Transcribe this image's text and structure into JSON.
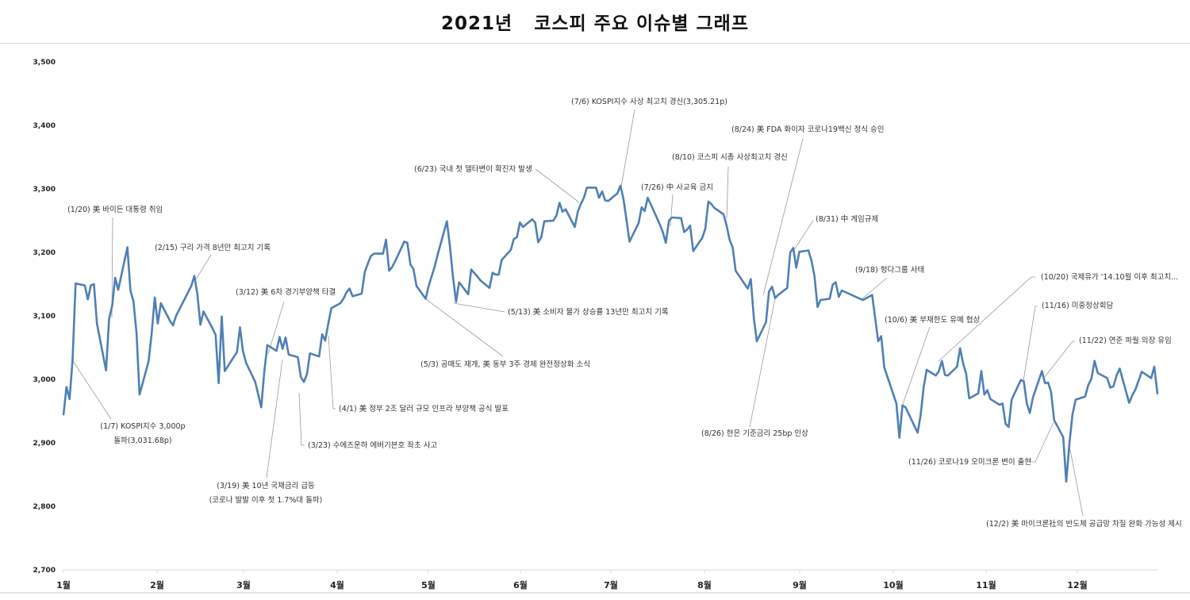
{
  "title": "2021년   코스피 주요 이슈별 그래프",
  "chart_data": {
    "type": "line",
    "title": "2021년   코스피 주요 이슈별 그래프",
    "xlabel": "",
    "ylabel": "",
    "ylim": [
      2700,
      3500
    ],
    "y_ticks": [
      "2,700",
      "2,800",
      "2,900",
      "3,000",
      "3,100",
      "3,200",
      "3,300",
      "3,400",
      "3,500"
    ],
    "y_tick_values": [
      2700,
      2800,
      2900,
      3000,
      3100,
      3200,
      3300,
      3400,
      3500
    ],
    "x_ticks": [
      "1월",
      "2월",
      "3월",
      "4월",
      "5월",
      "6월",
      "7월",
      "8월",
      "9월",
      "10월",
      "11월",
      "12월"
    ],
    "grid": false,
    "line_color": "#4f7fb5",
    "series": [
      {
        "x": [
          "2021-01-04",
          "2021-01-05",
          "2021-01-06",
          "2021-01-07",
          "2021-01-08",
          "2021-01-11",
          "2021-01-12",
          "2021-01-13",
          "2021-01-14",
          "2021-01-15",
          "2021-01-18",
          "2021-01-19",
          "2021-01-20",
          "2021-01-21",
          "2021-01-22",
          "2021-01-25",
          "2021-01-26",
          "2021-01-27",
          "2021-01-28",
          "2021-01-29",
          "2021-02-01",
          "2021-02-02",
          "2021-02-03",
          "2021-02-04",
          "2021-02-05",
          "2021-02-08",
          "2021-02-09",
          "2021-02-10",
          "2021-02-15",
          "2021-02-16",
          "2021-02-17",
          "2021-02-18",
          "2021-02-19",
          "2021-02-22",
          "2021-02-23",
          "2021-02-24",
          "2021-02-25",
          "2021-02-26",
          "2021-03-02",
          "2021-03-03",
          "2021-03-04",
          "2021-03-05",
          "2021-03-08",
          "2021-03-09",
          "2021-03-10",
          "2021-03-11",
          "2021-03-12",
          "2021-03-15",
          "2021-03-16",
          "2021-03-17",
          "2021-03-18",
          "2021-03-19",
          "2021-03-22",
          "2021-03-23",
          "2021-03-24",
          "2021-03-25",
          "2021-03-26",
          "2021-03-29",
          "2021-03-30",
          "2021-03-31",
          "2021-04-01",
          "2021-04-02",
          "2021-04-05",
          "2021-04-06",
          "2021-04-07",
          "2021-04-08",
          "2021-04-09",
          "2021-04-12",
          "2021-04-13",
          "2021-04-14",
          "2021-04-15",
          "2021-04-16",
          "2021-04-19",
          "2021-04-20",
          "2021-04-21",
          "2021-04-22",
          "2021-04-23",
          "2021-04-26",
          "2021-04-27",
          "2021-04-28",
          "2021-04-29",
          "2021-04-30",
          "2021-05-03",
          "2021-05-04",
          "2021-05-06",
          "2021-05-07",
          "2021-05-10",
          "2021-05-11",
          "2021-05-12",
          "2021-05-13",
          "2021-05-14",
          "2021-05-17",
          "2021-05-18",
          "2021-05-20",
          "2021-05-21",
          "2021-05-24",
          "2021-05-25",
          "2021-05-26",
          "2021-05-27",
          "2021-05-28",
          "2021-05-31",
          "2021-06-01",
          "2021-06-02",
          "2021-06-03",
          "2021-06-04",
          "2021-06-07",
          "2021-06-08",
          "2021-06-09",
          "2021-06-10",
          "2021-06-11",
          "2021-06-14",
          "2021-06-15",
          "2021-06-16",
          "2021-06-17",
          "2021-06-18",
          "2021-06-21",
          "2021-06-22",
          "2021-06-23",
          "2021-06-24",
          "2021-06-25",
          "2021-06-28",
          "2021-06-29",
          "2021-06-30",
          "2021-07-01",
          "2021-07-02",
          "2021-07-05",
          "2021-07-06",
          "2021-07-07",
          "2021-07-08",
          "2021-07-09",
          "2021-07-12",
          "2021-07-13",
          "2021-07-14",
          "2021-07-15",
          "2021-07-16",
          "2021-07-19",
          "2021-07-20",
          "2021-07-21",
          "2021-07-22",
          "2021-07-23",
          "2021-07-26",
          "2021-07-27",
          "2021-07-28",
          "2021-07-29",
          "2021-07-30",
          "2021-08-02",
          "2021-08-03",
          "2021-08-04",
          "2021-08-05",
          "2021-08-06",
          "2021-08-09",
          "2021-08-10",
          "2021-08-11",
          "2021-08-12",
          "2021-08-13",
          "2021-08-17",
          "2021-08-18",
          "2021-08-19",
          "2021-08-20",
          "2021-08-23",
          "2021-08-24",
          "2021-08-25",
          "2021-08-26",
          "2021-08-27",
          "2021-08-30",
          "2021-08-31",
          "2021-09-01",
          "2021-09-02",
          "2021-09-03",
          "2021-09-06",
          "2021-09-07",
          "2021-09-08",
          "2021-09-09",
          "2021-09-10",
          "2021-09-13",
          "2021-09-14",
          "2021-09-15",
          "2021-09-16",
          "2021-09-17",
          "2021-09-23",
          "2021-09-24",
          "2021-09-27",
          "2021-09-28",
          "2021-09-29",
          "2021-09-30",
          "2021-10-01",
          "2021-10-05",
          "2021-10-06",
          "2021-10-07",
          "2021-10-08",
          "2021-10-12",
          "2021-10-13",
          "2021-10-14",
          "2021-10-15",
          "2021-10-18",
          "2021-10-19",
          "2021-10-20",
          "2021-10-21",
          "2021-10-22",
          "2021-10-25",
          "2021-10-26",
          "2021-10-27",
          "2021-10-28",
          "2021-10-29",
          "2021-11-01",
          "2021-11-02",
          "2021-11-03",
          "2021-11-04",
          "2021-11-05",
          "2021-11-08",
          "2021-11-09",
          "2021-11-10",
          "2021-11-11",
          "2021-11-12",
          "2021-11-15",
          "2021-11-16",
          "2021-11-17",
          "2021-11-18",
          "2021-11-19",
          "2021-11-22",
          "2021-11-23",
          "2021-11-24",
          "2021-11-25",
          "2021-11-26",
          "2021-11-29",
          "2021-11-30",
          "2021-12-01",
          "2021-12-02",
          "2021-12-03",
          "2021-12-06",
          "2021-12-07",
          "2021-12-08",
          "2021-12-09",
          "2021-12-10",
          "2021-12-13",
          "2021-12-14",
          "2021-12-15",
          "2021-12-16",
          "2021-12-17",
          "2021-12-20",
          "2021-12-21",
          "2021-12-22",
          "2021-12-23",
          "2021-12-24",
          "2021-12-27",
          "2021-12-28",
          "2021-12-29"
        ],
        "y": [
          2944,
          2988,
          2969,
          3031,
          3151,
          3148,
          3126,
          3148,
          3150,
          3088,
          3014,
          3095,
          3116,
          3160,
          3141,
          3208,
          3140,
          3123,
          3073,
          2976,
          3029,
          3073,
          3129,
          3088,
          3120,
          3092,
          3085,
          3100,
          3147,
          3163,
          3134,
          3086,
          3107,
          3080,
          3070,
          2994,
          3099,
          3013,
          3043,
          3082,
          3044,
          3026,
          2996,
          2976,
          2956,
          3013,
          3054,
          3045,
          3067,
          3048,
          3066,
          3039,
          3035,
          3004,
          2996,
          3008,
          3041,
          3036,
          3071,
          3061,
          3087,
          3112,
          3120,
          3127,
          3137,
          3143,
          3131,
          3135,
          3169,
          3182,
          3194,
          3198,
          3198,
          3220,
          3171,
          3177,
          3186,
          3217,
          3215,
          3181,
          3174,
          3147,
          3127,
          3147,
          3178,
          3197,
          3249,
          3209,
          3161,
          3122,
          3153,
          3134,
          3173,
          3162,
          3156,
          3144,
          3168,
          3165,
          3165,
          3188,
          3204,
          3221,
          3224,
          3247,
          3240,
          3252,
          3247,
          3216,
          3224,
          3249,
          3250,
          3258,
          3278,
          3264,
          3268,
          3240,
          3264,
          3276,
          3286,
          3302,
          3302,
          3286,
          3296,
          3282,
          3281,
          3293,
          3305,
          3285,
          3252,
          3217,
          3246,
          3271,
          3265,
          3286,
          3276,
          3244,
          3232,
          3215,
          3250,
          3255,
          3254,
          3232,
          3236,
          3242,
          3202,
          3223,
          3237,
          3280,
          3276,
          3270,
          3260,
          3243,
          3220,
          3208,
          3171,
          3143,
          3158,
          3097,
          3060,
          3090,
          3138,
          3146,
          3128,
          3133,
          3144,
          3200,
          3207,
          3176,
          3201,
          3203,
          3187,
          3162,
          3114,
          3125,
          3127,
          3149,
          3153,
          3130,
          3140,
          3127,
          3125,
          3133,
          3097,
          3060,
          3068,
          3019,
          2962,
          2908,
          2959,
          2956,
          2916,
          2944,
          2988,
          3015,
          3006,
          3013,
          3029,
          3007,
          3006,
          3020,
          3049,
          3025,
          3009,
          2970,
          2978,
          3013,
          2976,
          2983,
          2969,
          2960,
          2962,
          2930,
          2925,
          2968,
          2999,
          2997,
          2962,
          2947,
          2971,
          3013,
          2994,
          2995,
          2980,
          2936,
          2909,
          2839,
          2899,
          2945,
          2968,
          2973,
          2991,
          3001,
          3029,
          3010,
          3002,
          2987,
          2989,
          3006,
          3017,
          2963,
          2975,
          2984,
          2998,
          3012,
          3002,
          3020,
          2977
        ]
      }
    ],
    "annotations": [
      {
        "date": "2021-01-07",
        "lines": [
          "(1/7) KOSPI지수 3,000p",
          "돌파(3,031.68p)"
        ]
      },
      {
        "date": "2021-01-20",
        "lines": [
          "(1/20) 美 바이든 대통령 취임"
        ]
      },
      {
        "date": "2021-02-15",
        "lines": [
          "(2/15) 구리 가격 8년만 최고치 기록"
        ]
      },
      {
        "date": "2021-03-12",
        "lines": [
          "(3/12) 美 6차 경기부양책 타결"
        ]
      },
      {
        "date": "2021-03-19",
        "lines": [
          "(3/19) 美 10년 국채금리 급등",
          "(코로나 발발 이후 첫 1.7%대 돌파)"
        ]
      },
      {
        "date": "2021-03-23",
        "lines": [
          "(3/23) 수에즈운하 에버기븐호 좌초 사고"
        ]
      },
      {
        "date": "2021-04-01",
        "lines": [
          "(4/1) 美 정부 2조 달러 규모 인프라 부양책 공식 발표"
        ]
      },
      {
        "date": "2021-05-03",
        "lines": [
          "(5/3) 공매도 재개, 美 동부 3주 경제 완전정상화 소식"
        ]
      },
      {
        "date": "2021-05-13",
        "lines": [
          "(5/13) 美 소비자 물가 상승률 13년만 최고치 기록"
        ]
      },
      {
        "date": "2021-06-23",
        "lines": [
          "(6/23) 국내 첫 델타변이 확진자 발생"
        ]
      },
      {
        "date": "2021-07-06",
        "lines": [
          "(7/6) KOSPI지수 사상 최고치 경신(3,305.21p)"
        ]
      },
      {
        "date": "2021-07-26",
        "lines": [
          "(7/26) 中 사교육 금지"
        ]
      },
      {
        "date": "2021-08-10",
        "lines": [
          "(8/10) 코스피 시총 사상최고치 경신"
        ]
      },
      {
        "date": "2021-08-24",
        "lines": [
          "(8/24) 美 FDA 화이자 코로나19백신 정식 승인"
        ]
      },
      {
        "date": "2021-08-26",
        "lines": [
          "(8/26) 한은 기준금리 25bp 인상"
        ]
      },
      {
        "date": "2021-08-31",
        "lines": [
          "(8/31) 中 게임규제"
        ]
      },
      {
        "date": "2021-09-18",
        "lines": [
          "(9/18) 헝다그룹 사태"
        ]
      },
      {
        "date": "2021-10-06",
        "lines": [
          "(10/6) 美 부채한도 유예 협상"
        ]
      },
      {
        "date": "2021-10-20",
        "lines": [
          "(10/20) 국제유가 '14.10월 이후 최고치..."
        ]
      },
      {
        "date": "2021-11-16",
        "lines": [
          "(11/16) 미중정상회담"
        ]
      },
      {
        "date": "2021-11-22",
        "lines": [
          "(11/22) 연준 파월 의장 유임"
        ]
      },
      {
        "date": "2021-11-26",
        "lines": [
          "(11/26) 코로나19 오미크론 변이 출현"
        ]
      },
      {
        "date": "2021-12-02",
        "lines": [
          "(12/2) 美 마이크론社의 반도체 공급망 차질 완화 가능성 제시"
        ]
      }
    ]
  }
}
